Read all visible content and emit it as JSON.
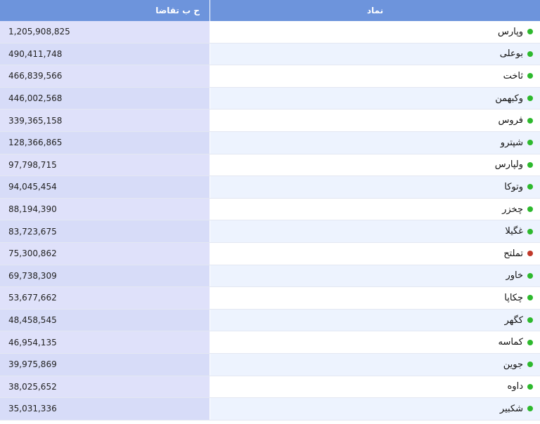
{
  "header": {
    "demand_label": "ح ب تقاضا",
    "symbol_label": "نماد"
  },
  "status_colors": {
    "positive": "#2db92d",
    "negative": "#c0392b"
  },
  "rows": [
    {
      "symbol": "وپارس",
      "demand": "1,205,908,825",
      "status": "positive"
    },
    {
      "symbol": "بوعلی",
      "demand": "490,411,748",
      "status": "positive"
    },
    {
      "symbol": "ثاخت",
      "demand": "466,839,566",
      "status": "positive"
    },
    {
      "symbol": "وکبهمن",
      "demand": "446,002,568",
      "status": "positive"
    },
    {
      "symbol": "فروس",
      "demand": "339,365,158",
      "status": "positive"
    },
    {
      "symbol": "شپترو",
      "demand": "128,366,865",
      "status": "positive"
    },
    {
      "symbol": "ولپارس",
      "demand": "97,798,715",
      "status": "positive"
    },
    {
      "symbol": "وتوکا",
      "demand": "94,045,454",
      "status": "positive"
    },
    {
      "symbol": "چخزر",
      "demand": "88,194,390",
      "status": "positive"
    },
    {
      "symbol": "غگیلا",
      "demand": "83,723,675",
      "status": "positive"
    },
    {
      "symbol": "تملتح",
      "demand": "75,300,862",
      "status": "negative"
    },
    {
      "symbol": "خاور",
      "demand": "69,738,309",
      "status": "positive"
    },
    {
      "symbol": "چکاپا",
      "demand": "53,677,662",
      "status": "positive"
    },
    {
      "symbol": "کگهر",
      "demand": "48,458,545",
      "status": "positive"
    },
    {
      "symbol": "کماسه",
      "demand": "46,954,135",
      "status": "positive"
    },
    {
      "symbol": "جوین",
      "demand": "39,975,869",
      "status": "positive"
    },
    {
      "symbol": "داوه",
      "demand": "38,025,652",
      "status": "positive"
    },
    {
      "symbol": "شکبیر",
      "demand": "35,031,336",
      "status": "positive"
    }
  ]
}
